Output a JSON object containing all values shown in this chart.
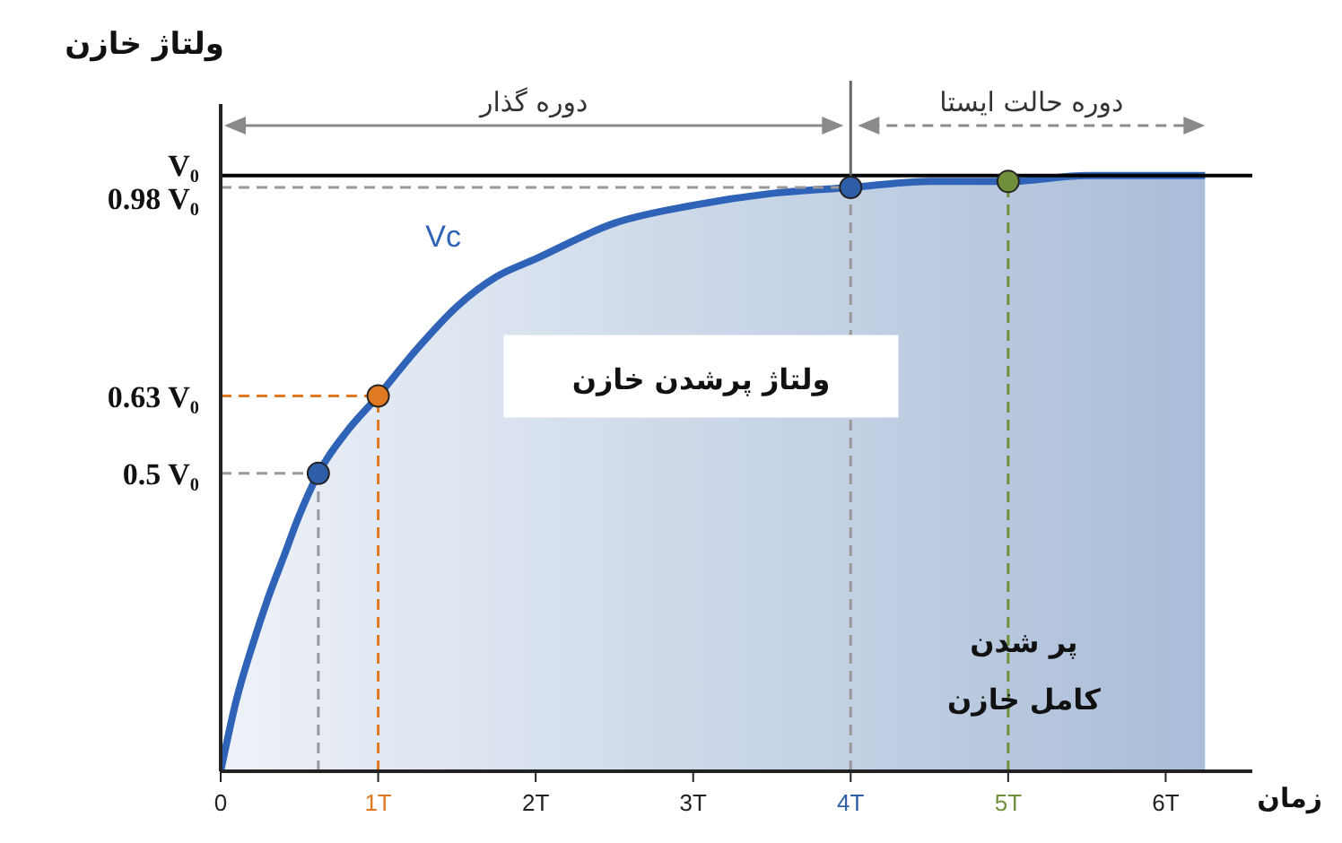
{
  "chart_data": {
    "type": "area",
    "xlabel": "زمان",
    "ylabel": "ولتاژ خازن",
    "xlim": [
      0,
      6.55
    ],
    "ylim": [
      0,
      1.12
    ],
    "xticks": [
      0,
      {
        "value": 1,
        "label": "1T"
      },
      {
        "value": 2,
        "label": "2T"
      },
      {
        "value": 3,
        "label": "3T"
      },
      {
        "value": 4,
        "label": "4T"
      },
      {
        "value": 5,
        "label": "5T"
      },
      {
        "value": 6,
        "label": "6T"
      }
    ],
    "yticks": [
      {
        "value": 0.5,
        "label": "0.5 V₀"
      },
      {
        "value": 0.63,
        "label": "0.63 V₀"
      },
      {
        "value": 0.98,
        "label": "0.98 V₀"
      },
      {
        "value": 1,
        "label": "V₀"
      }
    ],
    "series": [
      {
        "name": "Vc",
        "color": "#2e63b8",
        "x": [
          0,
          0.1,
          0.2,
          0.3,
          0.4,
          0.5,
          0.62,
          0.8,
          1,
          1.25,
          1.5,
          1.75,
          2,
          2.5,
          3,
          3.5,
          4,
          4.5,
          5,
          5.5,
          6.25
        ],
        "values": [
          0,
          0.12,
          0.21,
          0.29,
          0.36,
          0.43,
          0.5,
          0.57,
          0.63,
          0.71,
          0.78,
          0.83,
          0.86,
          0.92,
          0.95,
          0.97,
          0.98,
          0.99,
          0.99,
          1,
          1
        ]
      },
      {
        "type": "scatter",
        "x": [
          0.62,
          1,
          4,
          5
        ],
        "values": [
          0.5,
          0.63,
          0.98,
          0.99
        ],
        "colors": [
          "#2e5ea8",
          "#e07a22",
          "#2e5ea8",
          "#6f8f3a"
        ]
      }
    ],
    "ref_lines": [
      {
        "axis": "y",
        "value": 1,
        "color": "#000000",
        "line_style": "solid"
      },
      {
        "axis": "y",
        "value": 0.98,
        "color": "#999999",
        "line_style": "dashed"
      },
      {
        "axis": "y",
        "value": 0.63,
        "color": "#e07a22",
        "line_style": "dashed"
      },
      {
        "axis": "y",
        "value": 0.5,
        "color": "#999999",
        "line_style": "dashed"
      },
      {
        "axis": "x",
        "value": 0.62,
        "color": "#999999",
        "line_style": "dashed"
      },
      {
        "axis": "x",
        "value": 1,
        "color": "#e07a22",
        "line_style": "dashed"
      },
      {
        "axis": "x",
        "value": 4,
        "color": "#999999",
        "line_style": "dashed"
      },
      {
        "axis": "x",
        "value": 5,
        "color": "#6f8f3a",
        "line_style": "dashed"
      }
    ],
    "annotations": [
      "ولتاژ پرشدن خازن",
      "پر شدن\nکامل خازن",
      "دوره گذار",
      "دوره حالت ایستا"
    ]
  }
}
